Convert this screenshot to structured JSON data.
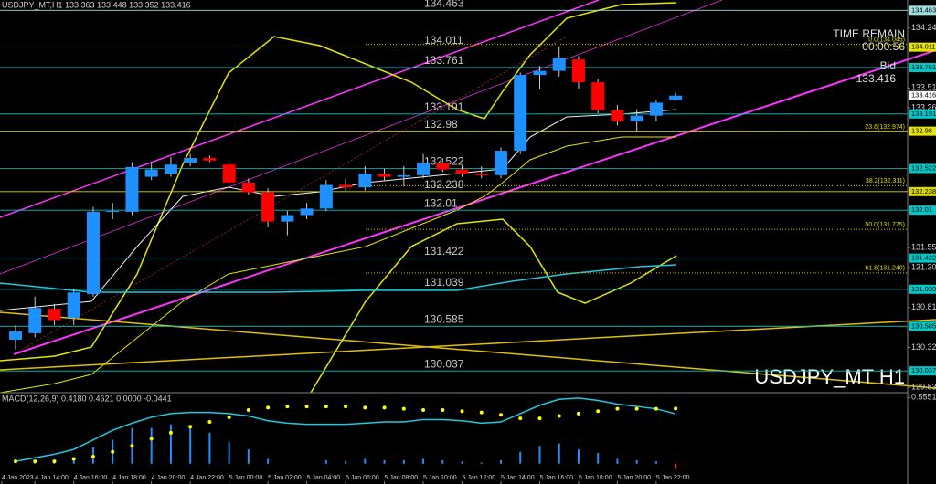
{
  "header": "USDJPY_MT,H1  133.363 133.448 133.352 133.416",
  "time_remain": {
    "label": "TIME REMAIN",
    "value": "00:00:56"
  },
  "bid": {
    "label": "Bid",
    "value": 133.416
  },
  "watermark": "USDJPY_MT H1",
  "chart_data": {
    "type": "candlestick",
    "ylim": [
      129.77,
      134.59
    ],
    "yticks": [
      134.245,
      133.51,
      133.265,
      131.55,
      131.305,
      130.815,
      130.325,
      129.835
    ],
    "series": [
      {
        "up_color": "#1e90ff",
        "down_color": "#ff0000",
        "wick_color": "#cccccc",
        "open": [
          130.42,
          130.5,
          130.8,
          130.69,
          130.98,
          131.99,
          131.99,
          132.42,
          132.46,
          132.59,
          132.65,
          132.57,
          132.35,
          132.23,
          131.87,
          131.95,
          132.03,
          132.32,
          132.29,
          132.46,
          132.42,
          132.44,
          132.59,
          132.51,
          132.46,
          132.44,
          132.74,
          133.67,
          133.72,
          133.86,
          133.58,
          133.24,
          133.1,
          133.17,
          133.363
        ],
        "high": [
          130.6,
          130.95,
          130.86,
          131.05,
          132.05,
          132.1,
          132.6,
          132.6,
          132.66,
          132.7,
          132.68,
          132.62,
          132.4,
          132.28,
          132.0,
          132.1,
          132.38,
          132.4,
          132.55,
          132.52,
          132.55,
          132.7,
          132.65,
          132.56,
          132.55,
          132.78,
          133.7,
          133.78,
          134.02,
          133.9,
          133.62,
          133.3,
          133.25,
          133.36,
          133.448
        ],
        "low": [
          130.3,
          130.45,
          130.6,
          130.6,
          130.95,
          131.9,
          131.95,
          132.38,
          132.42,
          132.55,
          132.6,
          132.3,
          132.2,
          131.8,
          131.7,
          131.9,
          132.0,
          132.25,
          132.25,
          132.38,
          132.3,
          132.4,
          132.48,
          132.42,
          132.4,
          132.4,
          132.7,
          133.5,
          133.65,
          133.5,
          133.2,
          133.05,
          132.98,
          133.1,
          133.352
        ],
        "close": [
          130.52,
          130.81,
          130.66,
          131.0,
          131.99,
          132.0,
          132.54,
          132.51,
          132.57,
          132.65,
          132.62,
          132.35,
          132.23,
          131.87,
          131.95,
          132.03,
          132.32,
          132.29,
          132.46,
          132.42,
          132.44,
          132.59,
          132.51,
          132.46,
          132.44,
          132.74,
          133.67,
          133.72,
          133.88,
          133.58,
          133.24,
          133.1,
          133.17,
          133.33,
          133.416
        ]
      }
    ],
    "levels": [
      {
        "value": 134.463,
        "color": "#9fe0e0"
      },
      {
        "value": 134.011,
        "color": "#e6e600"
      },
      {
        "value": 133.761,
        "color": "#00c8c8"
      },
      {
        "value": 133.191,
        "color": "#00c8c8"
      },
      {
        "value": 132.98,
        "color": "#e6e600"
      },
      {
        "value": 132.522,
        "color": "#00c8c8"
      },
      {
        "value": 132.238,
        "color": "#d8d800"
      },
      {
        "value": 132.01,
        "color": "#00c8c8"
      },
      {
        "value": 131.422,
        "color": "#00c8c8"
      },
      {
        "value": 131.039,
        "color": "#00c8c8"
      },
      {
        "value": 130.585,
        "color": "#00c8c8"
      },
      {
        "value": 130.037,
        "color": "#00c8c8"
      }
    ],
    "fib_levels": [
      {
        "value": 134.045,
        "label": "0.0(134.045)"
      },
      {
        "value": 132.974,
        "label": "23.6(132.974)"
      },
      {
        "value": 132.311,
        "label": "38.2(132.311)"
      },
      {
        "value": 131.775,
        "label": "50.0(131.775)"
      },
      {
        "value": 131.24,
        "label": "61.8(131.240)"
      }
    ],
    "xlabels": [
      "4 Jan 2023",
      "4 Jan 14:00",
      "4 Jan 16:00",
      "4 Jan 18:00",
      "4 Jan 20:00",
      "4 Jan 22:00",
      "5 Jan 00:00",
      "5 Jan 02:00",
      "5 Jan 04:00",
      "5 Jan 06:00",
      "5 Jan 08:00",
      "5 Jan 10:00",
      "5 Jan 12:00",
      "5 Jan 14:00",
      "5 Jan 16:00",
      "5 Jan 18:00",
      "5 Jan 20:00",
      "5 Jan 22:00"
    ],
    "macd": {
      "title": "MACD(12,26,9) 0.4180 0.4621 0.0000 -0.0441",
      "ylim": [
        -0.17,
        0.58
      ],
      "yticks": [
        0.5551
      ],
      "bar_color": "#1e90ff",
      "signal_color": "#ffff00",
      "line_color": "#20c8e0",
      "histogram": [
        0.0,
        0.01,
        0.01,
        0.03,
        0.14,
        0.2,
        0.3,
        0.3,
        0.33,
        0.3,
        0.26,
        0.18,
        0.12,
        0.04,
        0.0,
        0.0,
        0.03,
        0.02,
        0.04,
        0.03,
        0.03,
        0.04,
        0.03,
        0.02,
        0.01,
        0.03,
        0.1,
        0.15,
        0.17,
        0.12,
        0.09,
        0.04,
        0.03,
        0.02,
        -0.0441
      ],
      "signal": [
        0.02,
        0.02,
        0.02,
        0.04,
        0.06,
        0.1,
        0.15,
        0.21,
        0.26,
        0.31,
        0.35,
        0.39,
        0.45,
        0.47,
        0.48,
        0.48,
        0.48,
        0.48,
        0.47,
        0.47,
        0.46,
        0.45,
        0.45,
        0.44,
        0.43,
        0.41,
        0.38,
        0.38,
        0.4,
        0.42,
        0.44,
        0.46,
        0.46,
        0.46,
        0.4621
      ],
      "line": [
        0.02,
        0.05,
        0.08,
        0.12,
        0.2,
        0.28,
        0.34,
        0.39,
        0.42,
        0.43,
        0.43,
        0.42,
        0.4,
        0.36,
        0.34,
        0.33,
        0.33,
        0.33,
        0.34,
        0.35,
        0.35,
        0.37,
        0.37,
        0.36,
        0.34,
        0.35,
        0.42,
        0.49,
        0.54,
        0.55,
        0.53,
        0.5,
        0.48,
        0.46,
        0.418
      ]
    }
  }
}
